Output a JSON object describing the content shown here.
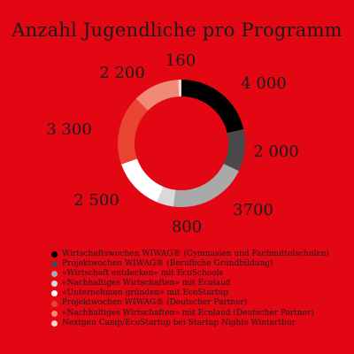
{
  "chart_data": {
    "type": "pie",
    "title": "Anzahl Jugendliche pro Programm",
    "series": [
      {
        "name": "Wirtschaftswochen WIWAG® (Gymnasien und Fachmittelschulen)",
        "value": 4000,
        "label": "4 000",
        "color": "#000000"
      },
      {
        "name": "Projektwochen WIWAG® (Berufliche Grundbildung)",
        "value": 2000,
        "label": "2 000",
        "color": "#4a4a4a"
      },
      {
        "name": "«Wirtschaft entdecken» mit EcoSchools",
        "value": 3700,
        "label": "3700",
        "color": "#a9a9a9"
      },
      {
        "name": "«Nachhaltiges Wirtschaften» mit Ecolaud",
        "value": 800,
        "label": "800",
        "color": "#d9d9d9"
      },
      {
        "name": "«Unternehmen gründen» mit EcoStartup",
        "value": 2500,
        "label": "2 500",
        "color": "#ffffff"
      },
      {
        "name": "Projektwochen WIWAG® (Deutscher Partner)",
        "value": 3300,
        "label": "3 300",
        "color": "#e8442f"
      },
      {
        "name": "«Nachhaltiges Wirtschaften» mit Ecolaud (Deutscher Partner)",
        "value": 2200,
        "label": "2 200",
        "color": "#f08a77"
      },
      {
        "name": "Nextgen Camp/EcoStartup bei Startup Nights Winterthur",
        "value": 160,
        "label": "160",
        "color": "#fbd2c7"
      }
    ]
  }
}
